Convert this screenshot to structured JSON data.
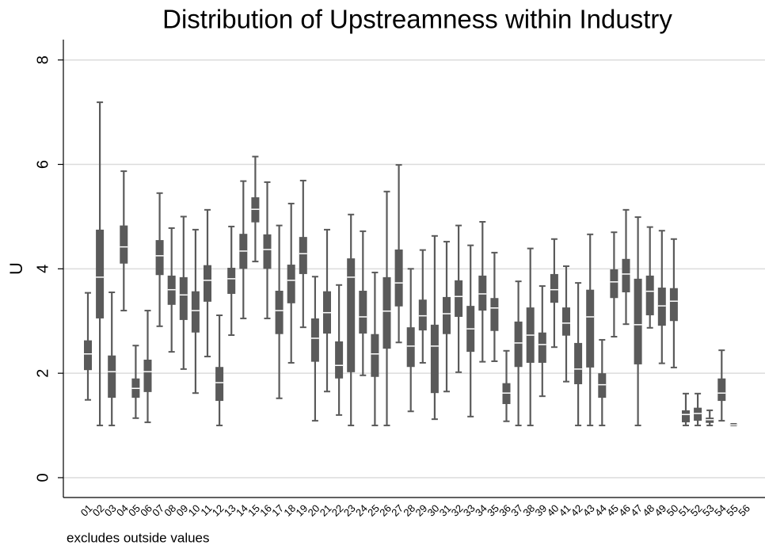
{
  "chart_data": {
    "type": "box",
    "title": "Distribution of Upstreamness within Industry",
    "y_label": "U",
    "note": "excludes outside values",
    "categories": [
      "01",
      "02",
      "03",
      "04",
      "05",
      "06",
      "07",
      "08",
      "09",
      "10",
      "11",
      "12",
      "13",
      "14",
      "15",
      "16",
      "17",
      "18",
      "19",
      "20",
      "21",
      "22",
      "23",
      "24",
      "25",
      "26",
      "27",
      "28",
      "29",
      "30",
      "31",
      "32",
      "33",
      "34",
      "35",
      "36",
      "37",
      "38",
      "39",
      "40",
      "41",
      "42",
      "43",
      "44",
      "45",
      "46",
      "47",
      "48",
      "49",
      "50",
      "51",
      "52",
      "53",
      "54",
      "55",
      "56"
    ],
    "low": [
      1.49,
      1.0,
      1.0,
      3.2,
      1.14,
      1.06,
      2.9,
      2.41,
      2.08,
      1.62,
      2.32,
      1.0,
      2.73,
      3.05,
      4.14,
      3.05,
      1.52,
      2.2,
      2.88,
      1.09,
      1.65,
      1.2,
      1.0,
      1.96,
      1.0,
      1.0,
      2.59,
      1.27,
      2.2,
      1.12,
      1.65,
      2.02,
      1.17,
      2.22,
      2.23,
      1.08,
      1.0,
      1.0,
      1.56,
      2.5,
      1.84,
      1.0,
      1.0,
      1.0,
      2.7,
      2.94,
      1.0,
      2.87,
      2.19,
      2.11,
      1.0,
      1.0,
      1.0,
      1.09,
      1.0,
      null
    ],
    "q1": [
      2.06,
      3.05,
      1.53,
      4.1,
      1.53,
      1.64,
      3.88,
      3.31,
      3.02,
      2.78,
      3.37,
      1.47,
      3.52,
      4.0,
      4.89,
      4.0,
      2.75,
      3.34,
      3.9,
      2.22,
      2.76,
      1.9,
      2.02,
      2.76,
      1.93,
      2.47,
      3.28,
      2.12,
      2.82,
      1.62,
      2.75,
      3.08,
      2.41,
      3.2,
      2.81,
      1.41,
      2.12,
      2.2,
      2.2,
      3.35,
      2.72,
      1.79,
      2.11,
      1.53,
      3.44,
      3.55,
      2.17,
      3.11,
      2.91,
      3.0,
      1.06,
      1.09,
      1.05,
      1.47,
      1.0,
      null
    ],
    "median": [
      2.37,
      3.84,
      2.03,
      4.42,
      1.71,
      2.03,
      4.25,
      3.6,
      3.5,
      3.2,
      3.78,
      1.82,
      3.81,
      4.34,
      5.14,
      4.37,
      3.2,
      3.78,
      4.29,
      2.67,
      3.16,
      2.15,
      3.84,
      3.08,
      2.37,
      3.19,
      3.73,
      2.52,
      3.1,
      2.52,
      3.14,
      3.47,
      2.85,
      3.52,
      3.25,
      1.62,
      2.58,
      2.73,
      2.55,
      3.6,
      2.96,
      2.08,
      3.08,
      1.78,
      3.75,
      3.9,
      2.93,
      3.57,
      3.29,
      3.38,
      1.21,
      1.23,
      1.11,
      1.62,
      1.01,
      null
    ],
    "q3": [
      2.63,
      4.75,
      2.34,
      4.83,
      1.9,
      2.26,
      4.55,
      3.87,
      3.84,
      3.57,
      4.07,
      2.12,
      4.02,
      4.67,
      5.37,
      4.66,
      3.58,
      4.08,
      4.61,
      3.05,
      3.57,
      2.61,
      4.2,
      3.58,
      2.75,
      3.84,
      4.37,
      2.88,
      3.41,
      2.93,
      3.46,
      3.78,
      3.29,
      3.87,
      3.44,
      1.81,
      2.99,
      3.26,
      2.78,
      3.9,
      3.26,
      2.58,
      3.6,
      2.0,
      3.99,
      4.19,
      3.81,
      3.87,
      3.64,
      3.63,
      1.29,
      1.34,
      1.15,
      1.9,
      1.02,
      null
    ],
    "high": [
      3.54,
      7.19,
      3.55,
      5.87,
      2.53,
      3.2,
      5.45,
      4.78,
      5.0,
      4.75,
      5.13,
      3.11,
      4.81,
      5.68,
      6.15,
      5.66,
      4.83,
      5.25,
      5.69,
      3.85,
      4.75,
      3.69,
      5.04,
      4.72,
      3.93,
      5.48,
      5.99,
      4.0,
      4.36,
      4.63,
      4.52,
      4.83,
      4.45,
      4.9,
      4.31,
      2.43,
      3.76,
      4.39,
      3.67,
      4.57,
      4.05,
      3.73,
      4.66,
      2.64,
      4.7,
      5.13,
      4.99,
      4.8,
      4.73,
      4.57,
      1.61,
      1.61,
      1.29,
      2.44,
      1.03,
      null
    ],
    "color": "#5a5a5a",
    "median_color": "#ffffff",
    "ylim": [
      -0.38,
      8.39
    ],
    "yticks": [
      0,
      2,
      4,
      6,
      8
    ],
    "grid": true
  }
}
